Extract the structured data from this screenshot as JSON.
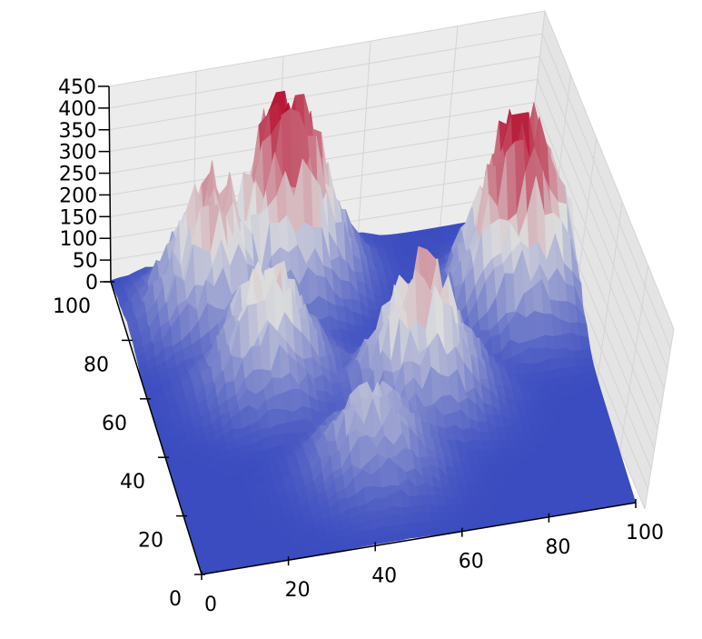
{
  "chart_data": {
    "type": "surface3d",
    "title": "",
    "xlabel": "",
    "ylabel": "",
    "zlabel": "",
    "xlim": [
      0,
      100
    ],
    "ylim": [
      0,
      100
    ],
    "zlim": [
      0,
      450
    ],
    "x_ticks": [
      "0",
      "20",
      "40",
      "60",
      "80",
      "100"
    ],
    "y_ticks": [
      "0",
      "20",
      "40",
      "60",
      "80",
      "100"
    ],
    "z_ticks": [
      "0",
      "50",
      "100",
      "150",
      "200",
      "250",
      "300",
      "350",
      "400",
      "450"
    ],
    "grid": true,
    "colormap": "coolwarm",
    "colors": {
      "low": "#3b4cc0",
      "mid": "#dddddd",
      "high": "#b40426",
      "pane": "#ececec",
      "grid": "#d4d4d4"
    },
    "peaks": [
      {
        "x": 38,
        "y": 88,
        "z": 440
      },
      {
        "x": 88,
        "y": 70,
        "z": 440
      },
      {
        "x": 20,
        "y": 82,
        "z": 300
      },
      {
        "x": 60,
        "y": 45,
        "z": 290
      },
      {
        "x": 28,
        "y": 58,
        "z": 250
      },
      {
        "x": 45,
        "y": 25,
        "z": 170
      }
    ]
  }
}
